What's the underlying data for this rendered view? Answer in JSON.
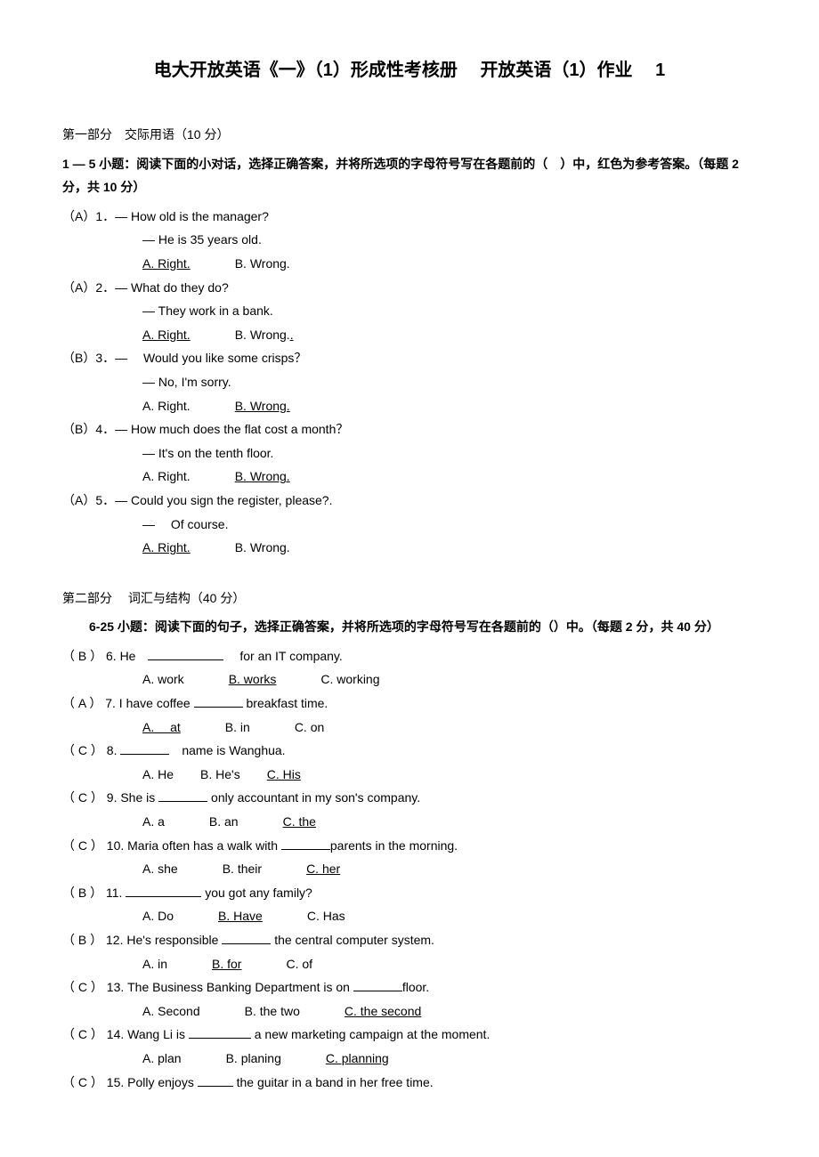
{
  "title_left": "电大开放英语《一》（1）形成性考核册",
  "title_right": "开放英语（1）作业 1",
  "part1": {
    "head": "第一部分　交际用语（10 分）",
    "instr": "1 — 5 小题：阅读下面的小对话，选择正确答案，并将所选项的字母符号写在各题前的（　）中，红色为参考答案。（每题 2 分，共 10 分）",
    "items": [
      {
        "ans": "（A）1．",
        "q": "— How old is the manager?",
        "r": "— He is 35 years old.",
        "a": "A. Right.",
        "b": "B. Wrong.",
        "ul": "a"
      },
      {
        "ans": "（A）2．",
        "q": "— What do they do?",
        "r": "— They work in a bank.",
        "a": "A. Right.",
        "b": "B. Wrong.",
        "ul": "a",
        "b_dot": true
      },
      {
        "ans": "（B）3．",
        "q": "— 　Would you like some crisps？",
        "r": "— No, I'm sorry.",
        "a": "A. Right.",
        "b": "B. Wrong.",
        "ul": "b"
      },
      {
        "ans": "（B）4．",
        "q": "— How much does the flat cost a month？",
        "r": "— It's on the tenth floor.",
        "a": "A. Right.",
        "b": "B. Wrong.",
        "ul": "b"
      },
      {
        "ans": "（A）5．",
        "q": "— Could you sign the register, please?.",
        "r": "— 　Of course.",
        "a": "A. Right.",
        "b": "B. Wrong.",
        "ul": "a"
      }
    ]
  },
  "part2": {
    "head": "第二部分　 词汇与结构（40 分）",
    "instr": "6-25 小题：阅读下面的句子，选择正确答案，并将所选项的字母符号写在各题前的（）中。（每题 2 分，共 40 分）",
    "items": [
      {
        "n": "6",
        "ans": "B",
        "pre": "He　",
        "bw": "w85",
        "post": "　 for an IT company.",
        "a": "A. work",
        "b": "B. works",
        "c": "C. working",
        "ul": "b"
      },
      {
        "n": "7",
        "ans": "A",
        "pre": "I have coffee ",
        "bw": "w58",
        "post": " breakfast time.",
        "a": "A. 　at",
        "b": "B. in",
        "c": "C. on",
        "ul": "a"
      },
      {
        "n": "8",
        "ans": "C",
        "pre": "",
        "bw": "w58",
        "post": "　name is Wanghua.",
        "a": "A. He",
        "b": "B. He's",
        "c": "C. His",
        "ul": "c",
        "gap": "narrow"
      },
      {
        "n": "9",
        "ans": "C",
        "pre": "She is ",
        "bw": "w58",
        "post": " only accountant in my son's company.",
        "a": "A. a",
        "b": "B. an",
        "c": "C. the",
        "ul": "c"
      },
      {
        "n": "10",
        "ans": "C",
        "pre": "Maria often has a walk with ",
        "bw": "w58",
        "post": "parents in the morning.",
        "a": "A. she",
        "b": "B. their",
        "c": "C. her",
        "ul": "c"
      },
      {
        "n": "11",
        "ans": "B",
        "pre": "",
        "bw": "w85",
        "post": " you got any family?",
        "a": "A. Do",
        "b": "B. Have",
        "c": "C. Has",
        "ul": "b"
      },
      {
        "n": "12",
        "ans": "B",
        "pre": " He's responsible ",
        "bw": "w58",
        "post": " the central computer system.",
        "a": "A. in",
        "b": "B. for",
        "c": "C. of",
        "ul": "b"
      },
      {
        "n": "13",
        "ans": "C",
        "pre": "The Business Banking Department is on ",
        "bw": "w58",
        "post": "floor.",
        "a": "A. Second",
        "b": "B. the two",
        "c": "C. the second",
        "ul": "c"
      },
      {
        "n": "14",
        "ans": "C",
        "pre": "Wang Li is ",
        "bw": "w70",
        "post": " a new marketing campaign at the moment.",
        "a": "A. plan",
        "b": "B. planing",
        "c": "C. planning",
        "ul": "c"
      },
      {
        "n": "15",
        "ans": "C",
        "pre": "Polly enjoys ",
        "bw": "w40",
        "post": " the guitar in a band in her free time.",
        "a": "",
        "b": "",
        "c": "",
        "ul": "",
        "noopts": true
      }
    ]
  }
}
